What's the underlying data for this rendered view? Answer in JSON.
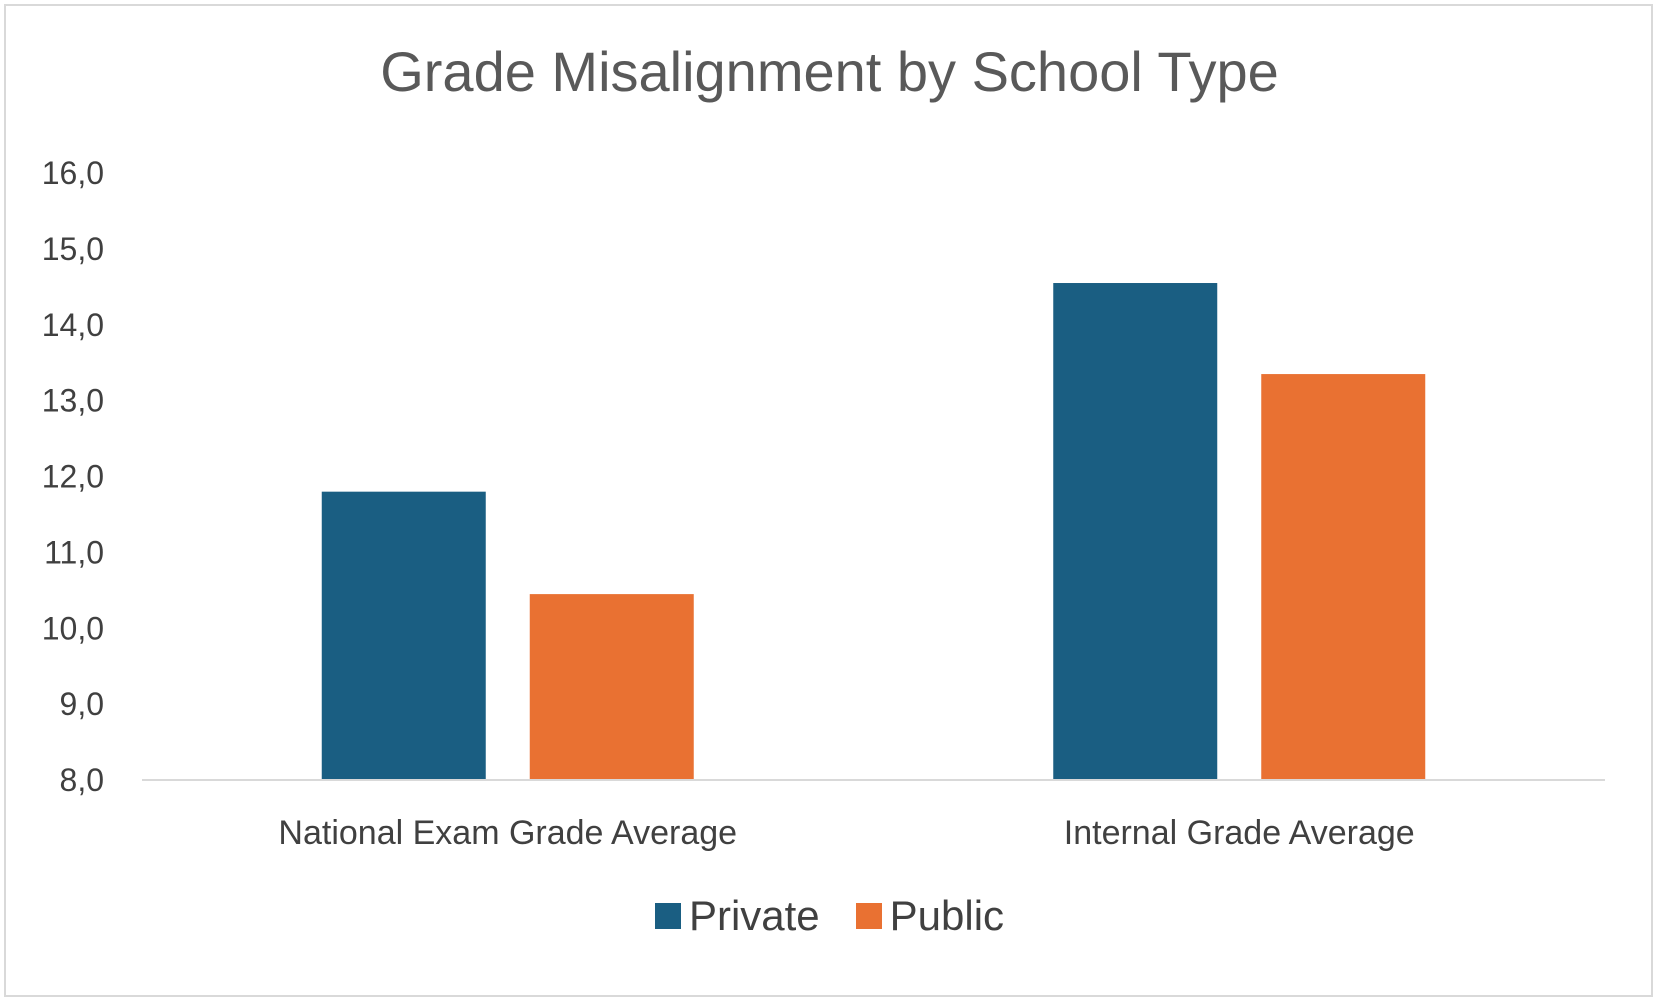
{
  "chart_data": {
    "type": "bar",
    "title": "Grade Misalignment by School Type",
    "categories": [
      "National Exam Grade Average",
      "Internal Grade Average"
    ],
    "series": [
      {
        "name": "Private",
        "values": [
          11.8,
          14.55
        ],
        "color": "#1a5e82"
      },
      {
        "name": "Public",
        "values": [
          10.45,
          13.35
        ],
        "color": "#e97132"
      }
    ],
    "ylim": [
      8.0,
      16.0
    ],
    "yticks": [
      "8,0",
      "9,0",
      "10,0",
      "11,0",
      "12,0",
      "13,0",
      "14,0",
      "15,0",
      "16,0"
    ],
    "grid": false,
    "legend_position": "bottom"
  }
}
